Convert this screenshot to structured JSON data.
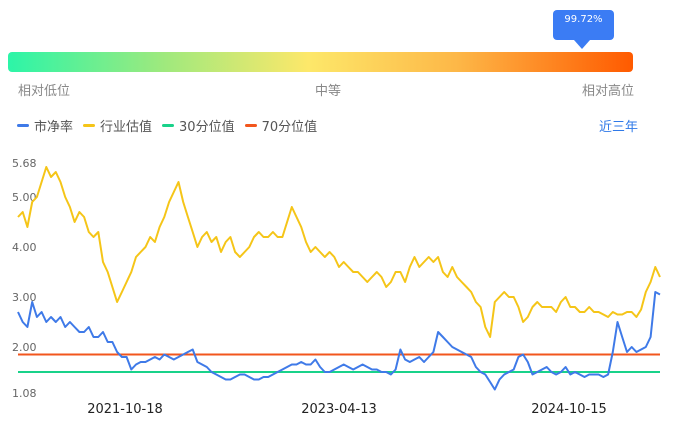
{
  "gauge": {
    "tooltip": "99.72%",
    "low_label": "相对低位",
    "mid_label": "中等",
    "high_label": "相对高位"
  },
  "legend": {
    "pb": "市净率",
    "industry": "行业估值",
    "p30": "30分位值",
    "p70": "70分位值"
  },
  "range_link": "近三年",
  "colors": {
    "pb": "#3f7ae8",
    "industry": "#f5c518",
    "p30": "#19d28a",
    "p70": "#f2561d"
  },
  "chart_data": {
    "type": "line",
    "ylim": [
      1.08,
      5.68
    ],
    "yticks": [
      "5.68",
      "5.00",
      "4.00",
      "3.00",
      "2.00",
      "1.08"
    ],
    "xtick_labels": [
      "2021-10-18",
      "2023-04-13",
      "2024-10-15"
    ],
    "p30": 1.5,
    "p70": 1.85,
    "series": [
      {
        "name": "市净率",
        "values": [
          2.7,
          2.5,
          2.4,
          2.9,
          2.6,
          2.7,
          2.5,
          2.6,
          2.5,
          2.6,
          2.4,
          2.5,
          2.4,
          2.3,
          2.3,
          2.4,
          2.2,
          2.2,
          2.3,
          2.1,
          2.1,
          1.9,
          1.8,
          1.8,
          1.55,
          1.65,
          1.7,
          1.7,
          1.75,
          1.8,
          1.75,
          1.85,
          1.8,
          1.75,
          1.8,
          1.85,
          1.9,
          1.95,
          1.7,
          1.65,
          1.6,
          1.5,
          1.45,
          1.4,
          1.35,
          1.35,
          1.4,
          1.45,
          1.45,
          1.4,
          1.35,
          1.35,
          1.4,
          1.4,
          1.45,
          1.5,
          1.55,
          1.6,
          1.65,
          1.65,
          1.7,
          1.65,
          1.65,
          1.75,
          1.6,
          1.5,
          1.5,
          1.55,
          1.6,
          1.65,
          1.6,
          1.55,
          1.6,
          1.65,
          1.6,
          1.55,
          1.55,
          1.5,
          1.5,
          1.45,
          1.55,
          1.95,
          1.75,
          1.7,
          1.75,
          1.8,
          1.7,
          1.8,
          1.9,
          2.3,
          2.2,
          2.1,
          2.0,
          1.95,
          1.9,
          1.85,
          1.8,
          1.6,
          1.5,
          1.45,
          1.3,
          1.15,
          1.35,
          1.45,
          1.5,
          1.55,
          1.8,
          1.85,
          1.7,
          1.45,
          1.5,
          1.55,
          1.6,
          1.5,
          1.45,
          1.5,
          1.6,
          1.45,
          1.5,
          1.45,
          1.4,
          1.45,
          1.45,
          1.45,
          1.4,
          1.45,
          1.9,
          2.5,
          2.2,
          1.9,
          2.0,
          1.9,
          1.95,
          2.0,
          2.2,
          3.1,
          3.05
        ]
      },
      {
        "name": "行业估值",
        "values": [
          4.6,
          4.7,
          4.4,
          4.9,
          5.0,
          5.3,
          5.6,
          5.4,
          5.5,
          5.3,
          5.0,
          4.8,
          4.5,
          4.7,
          4.6,
          4.3,
          4.2,
          4.3,
          3.7,
          3.5,
          3.2,
          2.9,
          3.1,
          3.3,
          3.5,
          3.8,
          3.9,
          4.0,
          4.2,
          4.1,
          4.4,
          4.6,
          4.9,
          5.1,
          5.3,
          4.9,
          4.6,
          4.3,
          4.0,
          4.2,
          4.3,
          4.1,
          4.2,
          3.9,
          4.1,
          4.2,
          3.9,
          3.8,
          3.9,
          4.0,
          4.2,
          4.3,
          4.2,
          4.2,
          4.3,
          4.2,
          4.2,
          4.5,
          4.8,
          4.6,
          4.4,
          4.1,
          3.9,
          4.0,
          3.9,
          3.8,
          3.9,
          3.8,
          3.6,
          3.7,
          3.6,
          3.5,
          3.5,
          3.4,
          3.3,
          3.4,
          3.5,
          3.4,
          3.2,
          3.3,
          3.5,
          3.5,
          3.3,
          3.6,
          3.8,
          3.6,
          3.7,
          3.8,
          3.7,
          3.8,
          3.5,
          3.4,
          3.6,
          3.4,
          3.3,
          3.2,
          3.1,
          2.9,
          2.8,
          2.4,
          2.2,
          2.9,
          3.0,
          3.1,
          3.0,
          3.0,
          2.8,
          2.5,
          2.6,
          2.8,
          2.9,
          2.8,
          2.8,
          2.8,
          2.7,
          2.9,
          3.0,
          2.8,
          2.8,
          2.7,
          2.7,
          2.8,
          2.7,
          2.7,
          2.65,
          2.6,
          2.7,
          2.65,
          2.65,
          2.7,
          2.7,
          2.6,
          2.75,
          3.1,
          3.3,
          3.6,
          3.4
        ]
      }
    ]
  }
}
